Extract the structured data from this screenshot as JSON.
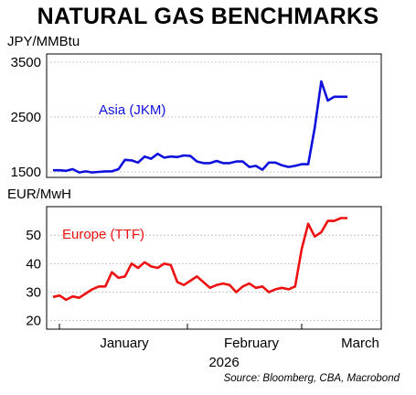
{
  "title": "NATURAL GAS BENCHMARKS",
  "source": "Source: Bloomberg, CBA, Macrobond",
  "x_axis": {
    "month_labels": [
      "January",
      "February",
      "March"
    ],
    "year_label": "2026"
  },
  "chart_data": [
    {
      "type": "line",
      "unit_label": "JPY/MMBtu",
      "ylim": [
        1400,
        3650
      ],
      "yticks": [
        1500,
        2500,
        3500
      ],
      "grid": true,
      "series": [
        {
          "name": "Asia (JKM)",
          "color": "#1010dd",
          "x": [
            "2025-12-22",
            "2025-12-23",
            "2025-12-24",
            "2025-12-26",
            "2025-12-29",
            "2025-12-30",
            "2025-12-31",
            "2026-01-02",
            "2026-01-05",
            "2026-01-06",
            "2026-01-07",
            "2026-01-08",
            "2026-01-09",
            "2026-01-12",
            "2026-01-13",
            "2026-01-14",
            "2026-01-15",
            "2026-01-16",
            "2026-01-19",
            "2026-01-20",
            "2026-01-21",
            "2026-01-22",
            "2026-01-23",
            "2026-01-26",
            "2026-01-27",
            "2026-01-28",
            "2026-01-29",
            "2026-01-30",
            "2026-02-02",
            "2026-02-03",
            "2026-02-04",
            "2026-02-05",
            "2026-02-06",
            "2026-02-09",
            "2026-02-10",
            "2026-02-11",
            "2026-02-12",
            "2026-02-13",
            "2026-02-16",
            "2026-02-17",
            "2026-02-18",
            "2026-02-19",
            "2026-02-20",
            "2026-02-23",
            "2026-02-24",
            "2026-02-25"
          ],
          "values": [
            1530,
            1530,
            1520,
            1550,
            1490,
            1510,
            1490,
            1500,
            1510,
            1510,
            1550,
            1720,
            1710,
            1670,
            1780,
            1740,
            1830,
            1760,
            1780,
            1770,
            1800,
            1790,
            1690,
            1660,
            1660,
            1700,
            1660,
            1660,
            1690,
            1690,
            1590,
            1610,
            1540,
            1670,
            1670,
            1620,
            1590,
            1610,
            1640,
            1640,
            2300,
            3150,
            2800,
            2870,
            2870,
            2870
          ]
        }
      ]
    },
    {
      "type": "line",
      "unit_label": "EUR/MwH",
      "ylim": [
        17,
        60
      ],
      "yticks": [
        20,
        30,
        40,
        50
      ],
      "grid": true,
      "series": [
        {
          "name": "Europe (TTF)",
          "color": "#ee1111",
          "x": [
            "2025-12-22",
            "2025-12-23",
            "2025-12-24",
            "2025-12-26",
            "2025-12-29",
            "2025-12-30",
            "2025-12-31",
            "2026-01-02",
            "2026-01-05",
            "2026-01-06",
            "2026-01-07",
            "2026-01-08",
            "2026-01-09",
            "2026-01-12",
            "2026-01-13",
            "2026-01-14",
            "2026-01-15",
            "2026-01-16",
            "2026-01-19",
            "2026-01-20",
            "2026-01-21",
            "2026-01-22",
            "2026-01-23",
            "2026-01-26",
            "2026-01-27",
            "2026-01-28",
            "2026-01-29",
            "2026-01-30",
            "2026-02-02",
            "2026-02-03",
            "2026-02-04",
            "2026-02-05",
            "2026-02-06",
            "2026-02-09",
            "2026-02-10",
            "2026-02-11",
            "2026-02-12",
            "2026-02-13",
            "2026-02-16",
            "2026-02-17",
            "2026-02-18",
            "2026-02-19",
            "2026-02-20",
            "2026-02-23",
            "2026-02-24",
            "2026-02-25"
          ],
          "values": [
            28.3,
            28.8,
            27.3,
            28.5,
            28.0,
            29.5,
            31.0,
            32.0,
            32.0,
            37.0,
            35.0,
            35.5,
            40.0,
            38.5,
            40.5,
            39.0,
            38.5,
            40.0,
            39.5,
            33.5,
            32.5,
            34.0,
            35.5,
            33.5,
            31.5,
            32.5,
            33.0,
            32.5,
            30.0,
            32.0,
            33.0,
            31.5,
            32.0,
            30.0,
            31.0,
            31.5,
            31.0,
            32.0,
            45.0,
            54.0,
            49.5,
            51.0,
            55.0,
            55.0,
            56.0,
            56.0
          ]
        }
      ]
    }
  ]
}
